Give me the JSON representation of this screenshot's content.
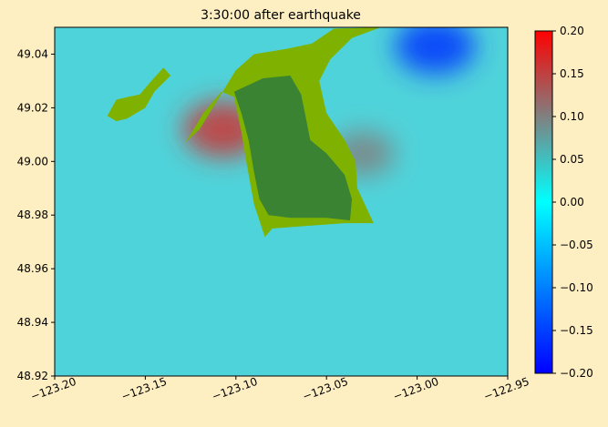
{
  "figure": {
    "background": "#feefc3"
  },
  "chart_data": {
    "type": "heatmap",
    "title": "3:30:00 after earthquake",
    "xlabel": "",
    "ylabel": "",
    "xlim": [
      -123.2,
      -122.95
    ],
    "ylim": [
      48.92,
      49.05
    ],
    "x_ticks": [
      -123.2,
      -123.15,
      -123.1,
      -123.05,
      -123.0,
      -122.95
    ],
    "x_tick_labels": [
      "−123.20",
      "−123.15",
      "−123.10",
      "−123.05",
      "−123.00",
      "−122.95"
    ],
    "y_ticks": [
      48.92,
      48.94,
      48.96,
      48.98,
      49.0,
      49.02,
      49.04
    ],
    "y_tick_labels": [
      "48.92",
      "48.94",
      "48.96",
      "48.98",
      "49.00",
      "49.02",
      "49.04"
    ],
    "grid": false,
    "colorbar": {
      "range": [
        -0.2,
        0.2
      ],
      "ticks": [
        -0.2,
        -0.15,
        -0.1,
        -0.05,
        0.0,
        0.05,
        0.1,
        0.15,
        0.2
      ],
      "tick_labels": [
        "−0.20",
        "−0.15",
        "−0.10",
        "−0.05",
        "0.00",
        "0.05",
        "0.10",
        "0.15",
        "0.20"
      ],
      "stops": [
        {
          "value": -0.2,
          "color": "#0000ff"
        },
        {
          "value": 0.0,
          "color": "#00ffff"
        },
        {
          "value": 0.1,
          "color": "#808080"
        },
        {
          "value": 0.2,
          "color": "#ff0000"
        }
      ]
    },
    "field": {
      "background_value": 0.03,
      "background_color": "#4fd3da",
      "land_colors": {
        "light_land": "#7fb200",
        "dark_land": "#3a8332"
      },
      "anomalies": [
        {
          "label": "positive anomaly west of peninsula",
          "lon": -123.107,
          "lat": 49.012,
          "value": 0.16
        },
        {
          "label": "positive anomaly east of peninsula",
          "lon": -123.03,
          "lat": 49.003,
          "value": 0.1
        },
        {
          "label": "negative anomaly northeast",
          "lon": -122.99,
          "lat": 49.043,
          "value": -0.16
        }
      ],
      "land_regions": [
        {
          "name": "upland (light)",
          "kind": "light_land",
          "outline": [
            [
              -123.128,
              49.007
            ],
            [
              -123.12,
              49.012
            ],
            [
              -123.1,
              49.034
            ],
            [
              -123.09,
              49.04
            ],
            [
              -123.072,
              49.042
            ],
            [
              -123.058,
              49.044
            ],
            [
              -123.046,
              49.0495
            ],
            [
              -123.02,
              49.05
            ],
            [
              -123.036,
              49.046
            ],
            [
              -123.048,
              49.038
            ],
            [
              -123.054,
              49.03
            ],
            [
              -123.05,
              49.018
            ],
            [
              -123.04,
              49.008
            ],
            [
              -123.034,
              49.0
            ],
            [
              -123.033,
              48.99
            ],
            [
              -123.024,
              48.977
            ],
            [
              -123.04,
              48.977
            ],
            [
              -123.06,
              48.976
            ],
            [
              -123.08,
              48.975
            ],
            [
              -123.084,
              48.9718
            ],
            [
              -123.09,
              48.984
            ],
            [
              -123.094,
              48.999
            ],
            [
              -123.097,
              49.011
            ],
            [
              -123.101,
              49.024
            ],
            [
              -123.108,
              49.026
            ],
            [
              -123.118,
              49.018
            ],
            [
              -123.126,
              49.009
            ]
          ]
        },
        {
          "name": "island (light)",
          "kind": "light_land",
          "outline": [
            [
              -123.171,
              49.017
            ],
            [
              -123.166,
              49.023
            ],
            [
              -123.16,
              49.024
            ],
            [
              -123.153,
              49.025
            ],
            [
              -123.148,
              49.029
            ],
            [
              -123.14,
              49.035
            ],
            [
              -123.136,
              49.032
            ],
            [
              -123.145,
              49.026
            ],
            [
              -123.15,
              49.02
            ],
            [
              -123.16,
              49.016
            ],
            [
              -123.166,
              49.015
            ]
          ]
        },
        {
          "name": "lowland (dark)",
          "kind": "dark_land",
          "outline": [
            [
              -123.101,
              49.026
            ],
            [
              -123.085,
              49.031
            ],
            [
              -123.07,
              49.032
            ],
            [
              -123.064,
              49.025
            ],
            [
              -123.061,
              49.015
            ],
            [
              -123.059,
              49.008
            ],
            [
              -123.05,
              49.003
            ],
            [
              -123.04,
              48.995
            ],
            [
              -123.036,
              48.986
            ],
            [
              -123.037,
              48.978
            ],
            [
              -123.05,
              48.979
            ],
            [
              -123.07,
              48.979
            ],
            [
              -123.082,
              48.98
            ],
            [
              -123.087,
              48.986
            ],
            [
              -123.09,
              48.996
            ],
            [
              -123.093,
              49.008
            ],
            [
              -123.097,
              49.018
            ]
          ]
        }
      ]
    }
  }
}
